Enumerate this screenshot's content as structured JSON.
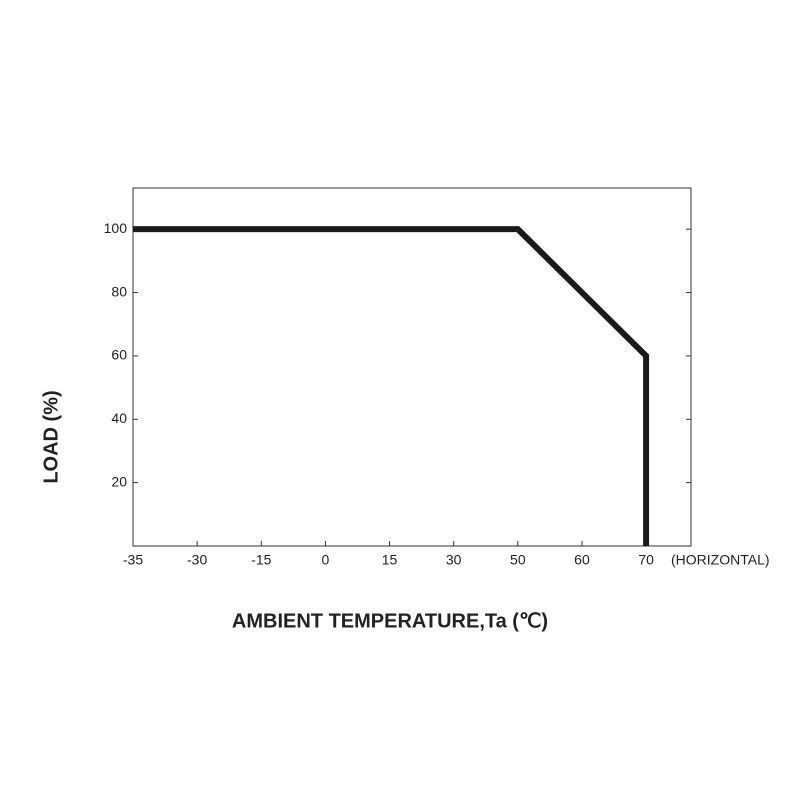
{
  "chart_data": {
    "type": "line",
    "xlabel": "AMBIENT TEMPERATURE,Ta (℃)",
    "ylabel": "LOAD (%)",
    "annotation": "(HORIZONTAL)",
    "x": [
      -35,
      50,
      70,
      70
    ],
    "series": [
      {
        "color": "#1a1a1a",
        "values": [
          100,
          100,
          60,
          0
        ]
      }
    ],
    "xlim": [
      -35,
      77
    ],
    "xticks": [
      -35,
      -30,
      -15,
      0,
      15,
      30,
      50,
      60,
      70
    ],
    "ylim": [
      0,
      113
    ],
    "yticks": [
      20,
      40,
      60,
      80,
      100
    ]
  }
}
